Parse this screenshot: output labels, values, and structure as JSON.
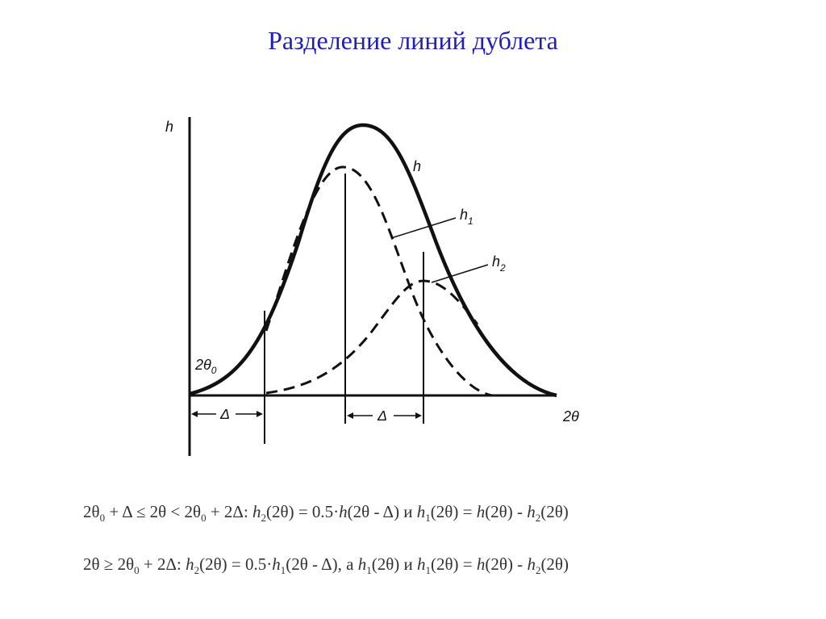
{
  "title": "Разделение линий дублета",
  "diagram": {
    "labels": {
      "h_axis": "h",
      "h_curve": "h",
      "h1": [
        "h",
        "1"
      ],
      "h2": [
        "h",
        "2"
      ],
      "theta0": [
        "2θ",
        "0"
      ],
      "delta_left": "Δ",
      "delta_right": "Δ",
      "x_axis": "2θ"
    }
  },
  "formulas": [
    [
      "2θ",
      "0",
      " + Δ ≤ 2θ < 2θ",
      "0",
      " + 2Δ: ",
      "h",
      "2",
      "(2θ) = 0.5·",
      "h",
      "(2θ - Δ) и ",
      "h",
      "1",
      "(2θ) = ",
      "h",
      "(2θ) - ",
      "h",
      "2",
      "(2θ)"
    ],
    [
      "2θ ≥ 2θ",
      "0",
      " + 2Δ: ",
      "h",
      "2",
      "(2θ) = 0.5·",
      "h",
      "1",
      "(2θ - Δ), а ",
      "h",
      "1",
      "(2θ) и ",
      "h",
      "1",
      "(2θ) = ",
      "h",
      "(2θ) - ",
      "h",
      "2",
      "(2θ)"
    ]
  ]
}
